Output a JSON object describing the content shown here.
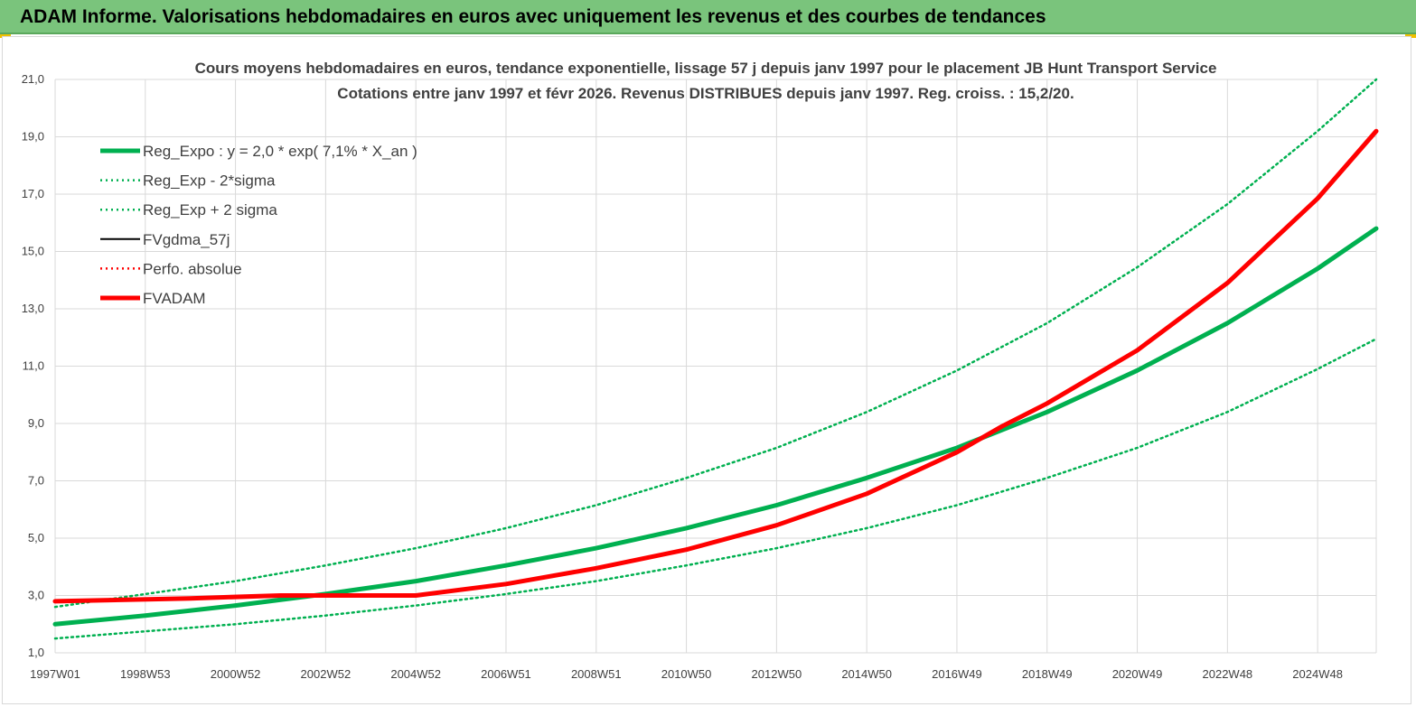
{
  "banner": {
    "title": "ADAM Informe. Valorisations hebdomadaires en euros avec uniquement les revenus et des courbes de tendances"
  },
  "colors": {
    "banner_bg": "#7ac47c",
    "reg_expo": "#00b050",
    "fvgdma": "#000000",
    "perfo": "#ff0000",
    "fvadam": "#ff0000",
    "grid": "#d9d9d9"
  },
  "chart_data": {
    "type": "line",
    "title_lines": [
      "Cours moyens hebdomadaires en euros, tendance exponentielle, lissage 57 j depuis janv 1997 pour le placement JB Hunt Transport Service",
      "Cotations entre janv 1997 et févr 2026. Revenus DISTRIBUES depuis janv 1997. Reg. croiss. : 15,2/20."
    ],
    "xlabel": "",
    "ylabel": "",
    "ylim": [
      1.0,
      21.0
    ],
    "xlim": [
      1997.0,
      2026.3
    ],
    "y_ticks": [
      "1,0",
      "3,0",
      "5,0",
      "7,0",
      "9,0",
      "11,0",
      "13,0",
      "15,0",
      "17,0",
      "19,0",
      "21,0"
    ],
    "x_ticks": [
      {
        "label": "1997W01",
        "x": 1997.0
      },
      {
        "label": "1998W53",
        "x": 1999.0
      },
      {
        "label": "2000W52",
        "x": 2001.0
      },
      {
        "label": "2002W52",
        "x": 2003.0
      },
      {
        "label": "2004W52",
        "x": 2005.0
      },
      {
        "label": "2006W51",
        "x": 2007.0
      },
      {
        "label": "2008W51",
        "x": 2009.0
      },
      {
        "label": "2010W50",
        "x": 2011.0
      },
      {
        "label": "2012W50",
        "x": 2013.0
      },
      {
        "label": "2014W50",
        "x": 2015.0
      },
      {
        "label": "2016W49",
        "x": 2017.0
      },
      {
        "label": "2018W49",
        "x": 2019.0
      },
      {
        "label": "2020W49",
        "x": 2021.0
      },
      {
        "label": "2022W48",
        "x": 2023.0
      },
      {
        "label": "2024W48",
        "x": 2025.0
      }
    ],
    "grid": true,
    "legend_position": "top-left",
    "series": [
      {
        "name": "Reg_Expo : y = 2,0 * exp( 7,1% *  X_an )",
        "style": "solid-thick",
        "color": "#00b050",
        "x": [
          1997.0,
          1999.0,
          2001.0,
          2003.0,
          2005.0,
          2007.0,
          2009.0,
          2011.0,
          2013.0,
          2015.0,
          2017.0,
          2019.0,
          2021.0,
          2023.0,
          2025.0,
          2026.3
        ],
        "y": [
          2.0,
          2.3,
          2.65,
          3.05,
          3.5,
          4.05,
          4.65,
          5.35,
          6.15,
          7.1,
          8.15,
          9.4,
          10.85,
          12.5,
          14.4,
          15.8
        ]
      },
      {
        "name": "Reg_Exp - 2*sigma",
        "style": "dotted",
        "color": "#00b050",
        "x": [
          1997.0,
          1999.0,
          2001.0,
          2003.0,
          2005.0,
          2007.0,
          2009.0,
          2011.0,
          2013.0,
          2015.0,
          2017.0,
          2019.0,
          2021.0,
          2023.0,
          2025.0,
          2026.3
        ],
        "y": [
          1.5,
          1.75,
          2.0,
          2.3,
          2.65,
          3.05,
          3.5,
          4.05,
          4.65,
          5.35,
          6.15,
          7.1,
          8.15,
          9.4,
          10.9,
          11.95
        ]
      },
      {
        "name": "Reg_Exp + 2 sigma",
        "style": "dotted",
        "color": "#00b050",
        "x": [
          1997.0,
          1999.0,
          2001.0,
          2003.0,
          2005.0,
          2007.0,
          2009.0,
          2011.0,
          2013.0,
          2015.0,
          2017.0,
          2019.0,
          2021.0,
          2023.0,
          2025.0,
          2026.3
        ],
        "y": [
          2.6,
          3.05,
          3.5,
          4.05,
          4.65,
          5.35,
          6.15,
          7.1,
          8.15,
          9.4,
          10.85,
          12.5,
          14.45,
          16.65,
          19.2,
          21.0
        ]
      },
      {
        "name": "FVgdma_57j",
        "style": "solid",
        "color": "#000000",
        "x": [
          1997.0,
          2000.0,
          2002.0,
          2005.0,
          2007.0,
          2009.0,
          2011.0,
          2013.0,
          2015.0,
          2017.0,
          2018.0,
          2019.0,
          2021.0,
          2023.0,
          2025.0,
          2026.3
        ],
        "y": [
          2.8,
          2.9,
          3.0,
          3.0,
          3.4,
          3.95,
          4.6,
          5.45,
          6.55,
          8.0,
          8.9,
          9.7,
          11.55,
          13.9,
          16.85,
          19.2
        ]
      },
      {
        "name": "Perfo. absolue",
        "style": "dotted",
        "color": "#ff0000",
        "x": [
          1997.0,
          2000.0,
          2002.0,
          2005.0,
          2007.0,
          2009.0,
          2011.0,
          2013.0,
          2015.0,
          2017.0,
          2018.0,
          2019.0,
          2021.0,
          2023.0,
          2025.0,
          2026.3
        ],
        "y": [
          2.8,
          2.9,
          3.0,
          3.0,
          3.4,
          3.95,
          4.6,
          5.45,
          6.55,
          8.0,
          8.9,
          9.7,
          11.55,
          13.9,
          16.85,
          19.2
        ]
      },
      {
        "name": "FVADAM",
        "style": "solid-thick",
        "color": "#ff0000",
        "x": [
          1997.0,
          2000.0,
          2002.0,
          2005.0,
          2007.0,
          2009.0,
          2011.0,
          2013.0,
          2015.0,
          2017.0,
          2018.0,
          2019.0,
          2021.0,
          2023.0,
          2025.0,
          2026.3
        ],
        "y": [
          2.8,
          2.9,
          3.0,
          3.0,
          3.4,
          3.95,
          4.6,
          5.45,
          6.55,
          8.0,
          8.9,
          9.7,
          11.55,
          13.9,
          16.85,
          19.2
        ]
      }
    ]
  }
}
